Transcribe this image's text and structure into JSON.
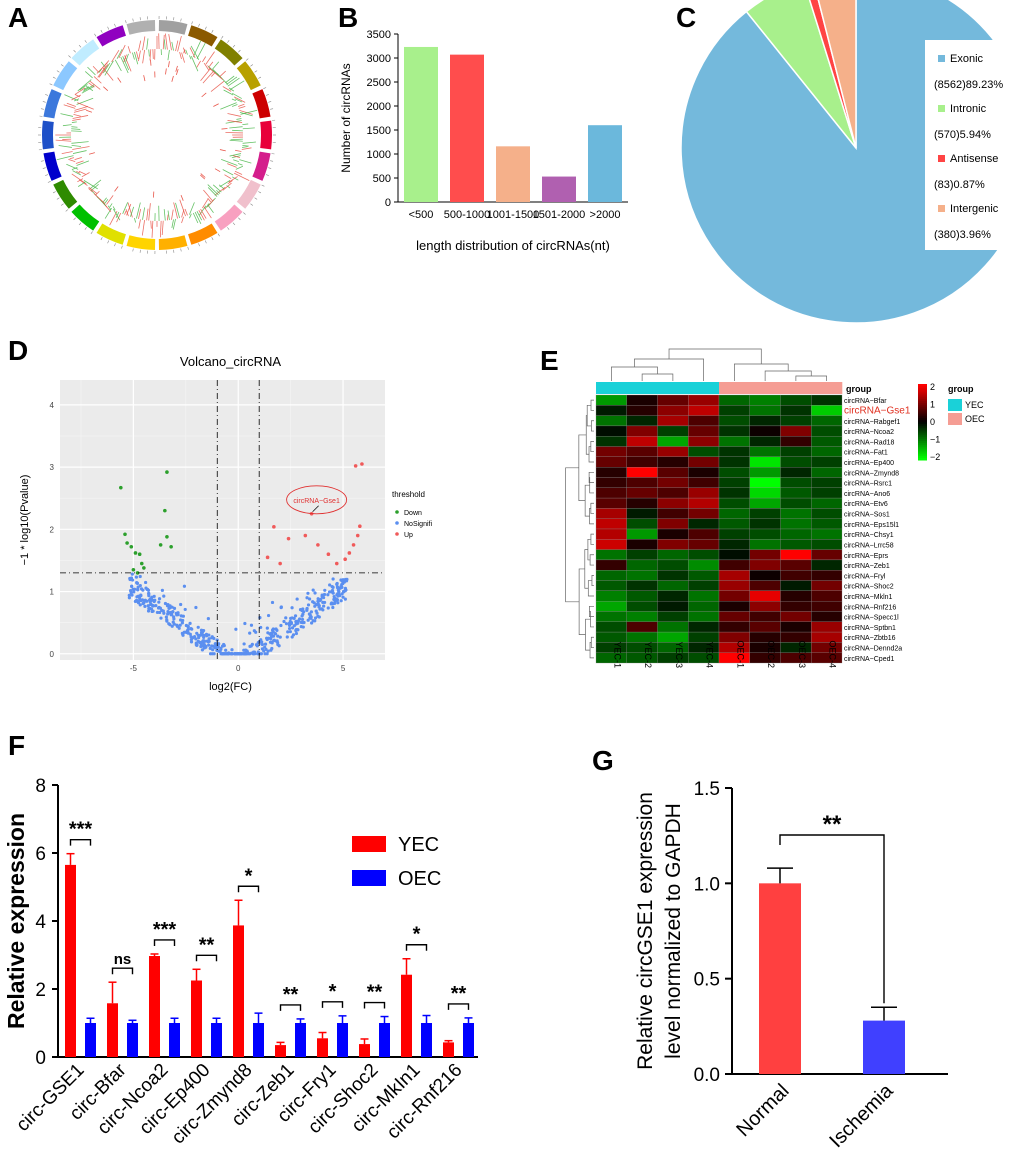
{
  "panels": {
    "a": "A",
    "b": "B",
    "c": "C",
    "d": "D",
    "e": "E",
    "f": "F",
    "g": "G"
  },
  "chart_data": [
    {
      "panel": "A",
      "type": "other",
      "description_free": true,
      "segment_colors": [
        "#a0a0a0",
        "#8b5a00",
        "#808000",
        "#b8a000",
        "#cc0000",
        "#e8003a",
        "#d41e8c",
        "#f0c0cc",
        "#f8a0c0",
        "#ff8c00",
        "#ffb000",
        "#ffd400",
        "#e0e000",
        "#00c000",
        "#2e8b00",
        "#0000cc",
        "#1e50c8",
        "#3c78dc",
        "#8cc8ff",
        "#c0ecff",
        "#9000c0",
        "#b0b0b0"
      ]
    },
    {
      "panel": "B",
      "type": "bar",
      "categories": [
        "<500",
        "500-1000",
        "1001-1500",
        "1501-2000",
        ">2000"
      ],
      "values": [
        3230,
        3070,
        1160,
        530,
        1600
      ],
      "colors": [
        "#a8f08c",
        "#ff4d4d",
        "#f5b08a",
        "#b060b0",
        "#6bb8dc"
      ],
      "ylabel": "Number of circRNAs",
      "xlabel": "length distribution of circRNAs(nt)",
      "ylim": [
        0,
        3500
      ],
      "yticks": [
        "0",
        "500",
        "1000",
        "1500",
        "2000",
        "2500",
        "3000",
        "3500"
      ]
    },
    {
      "panel": "C",
      "type": "pie",
      "slices": [
        {
          "name": "Exonic",
          "value": 89.23,
          "label": "(8562)89.23%",
          "color": "#74b9dc"
        },
        {
          "name": "Intronic",
          "value": 5.94,
          "label": "(570)5.94%",
          "color": "#a8f08c"
        },
        {
          "name": "Antisense",
          "value": 0.87,
          "label": "(83)0.87%",
          "color": "#ff4444"
        },
        {
          "name": "Intergenic",
          "value": 3.96,
          "label": "(380)3.96%",
          "color": "#f5b08a"
        }
      ]
    },
    {
      "panel": "D",
      "type": "scatter",
      "title": "Volcano_circRNA",
      "xlabel": "log2(FC)",
      "ylabel": "−1 * log10(Pvalue)",
      "xlim": [
        -8.5,
        7
      ],
      "ylim": [
        -0.1,
        4.4
      ],
      "xticks": [
        "-5",
        "0",
        "5"
      ],
      "yticks": [
        "0",
        "1",
        "2",
        "3",
        "4"
      ],
      "vlines": [
        -1,
        1
      ],
      "hline": 1.3,
      "annotation": "circRNA−Gse1",
      "legend_title": "threshold",
      "legend": [
        {
          "name": "Down",
          "color": "#2ca02c"
        },
        {
          "name": "NoSignifi",
          "color": "#5b8ff0"
        },
        {
          "name": "Up",
          "color": "#f05a5a"
        }
      ],
      "down_points": [
        [
          -5.6,
          2.67
        ],
        [
          -3.4,
          2.92
        ],
        [
          -3.5,
          2.3
        ],
        [
          -5.4,
          1.92
        ],
        [
          -5.3,
          1.78
        ],
        [
          -5.1,
          1.72
        ],
        [
          -4.9,
          1.62
        ],
        [
          -4.7,
          1.6
        ],
        [
          -4.6,
          1.45
        ],
        [
          -3.7,
          1.75
        ],
        [
          -3.4,
          1.88
        ],
        [
          -3.2,
          1.72
        ],
        [
          -5.0,
          1.35
        ],
        [
          -4.5,
          1.38
        ],
        [
          -4.8,
          1.3
        ]
      ],
      "up_points": [
        [
          5.6,
          3.02
        ],
        [
          5.9,
          3.05
        ],
        [
          3.5,
          2.25
        ],
        [
          5.8,
          2.05
        ],
        [
          5.7,
          1.9
        ],
        [
          5.5,
          1.75
        ],
        [
          5.3,
          1.62
        ],
        [
          1.7,
          2.04
        ],
        [
          2.4,
          1.85
        ],
        [
          3.2,
          1.9
        ],
        [
          3.8,
          1.75
        ],
        [
          4.3,
          1.6
        ],
        [
          1.4,
          1.55
        ],
        [
          2.0,
          1.45
        ],
        [
          4.7,
          1.45
        ],
        [
          5.1,
          1.52
        ]
      ],
      "highlight": [
        3.5,
        2.25
      ]
    },
    {
      "panel": "E",
      "type": "heatmap",
      "columns": [
        "YEC-1",
        "YEC-2",
        "YEC-3",
        "YEC-4",
        "OEC-1",
        "OEC-2",
        "OEC-3",
        "OEC-4"
      ],
      "group_bar_label": "group",
      "groups": [
        {
          "name": "YEC",
          "color": "#1ad1d8"
        },
        {
          "name": "OEC",
          "color": "#f59d94"
        }
      ],
      "scale_ticks": [
        "2",
        "1",
        "0",
        "−1",
        "−2"
      ],
      "legend_title": "group",
      "highlight_row": "circRNA−Gse1",
      "rows": [
        {
          "name": "circRNA−Bfar",
          "values": [
            -1.2,
            0.2,
            0.8,
            1.2,
            -0.8,
            -1.0,
            -0.6,
            -0.4
          ]
        },
        {
          "name": "circRNA−Gse1",
          "values": [
            -0.2,
            0.3,
            1.1,
            1.5,
            -0.5,
            -0.9,
            -0.4,
            -1.6
          ]
        },
        {
          "name": "circRNA−Rabgef1",
          "values": [
            -0.9,
            -0.3,
            1.3,
            0.6,
            -0.6,
            -0.3,
            -0.5,
            -0.8
          ]
        },
        {
          "name": "circRNA−Ncoa2",
          "values": [
            -0.1,
            1.0,
            -0.5,
            0.8,
            -0.4,
            0.1,
            1.0,
            -0.6
          ]
        },
        {
          "name": "circRNA−Rad18",
          "values": [
            -0.4,
            1.5,
            -1.3,
            1.1,
            -0.9,
            -0.3,
            0.4,
            -0.7
          ]
        },
        {
          "name": "circRNA−Fat1",
          "values": [
            0.9,
            0.7,
            1.2,
            -0.6,
            -0.4,
            -0.9,
            -0.5,
            -0.8
          ]
        },
        {
          "name": "circRNA−Ep400",
          "values": [
            0.8,
            0.5,
            0.3,
            0.9,
            -0.4,
            -1.8,
            -0.6,
            -0.5
          ]
        },
        {
          "name": "circRNA−Zmynd8",
          "values": [
            0.3,
            2.0,
            0.7,
            0.2,
            -0.6,
            -1.2,
            -0.3,
            -0.8
          ]
        },
        {
          "name": "circRNA−Rsrc1",
          "values": [
            0.4,
            0.6,
            0.9,
            0.5,
            -0.5,
            -2.0,
            -0.6,
            -0.5
          ]
        },
        {
          "name": "circRNA−Ano6",
          "values": [
            0.6,
            0.8,
            0.6,
            1.2,
            -0.4,
            -1.7,
            -0.7,
            -0.5
          ]
        },
        {
          "name": "circRNA−Etv6",
          "values": [
            0.7,
            0.3,
            1.1,
            1.4,
            -0.6,
            -1.3,
            -0.6,
            -0.8
          ]
        },
        {
          "name": "circRNA−Sos1",
          "values": [
            1.3,
            -0.2,
            0.5,
            0.9,
            -0.8,
            -0.5,
            -0.9,
            -0.6
          ]
        },
        {
          "name": "circRNA−Eps15l1",
          "values": [
            1.5,
            -0.6,
            1.0,
            -0.3,
            -0.7,
            -0.4,
            -0.9,
            -0.7
          ]
        },
        {
          "name": "circRNA−Chsy1",
          "values": [
            1.4,
            -1.2,
            0.2,
            0.6,
            -0.5,
            -0.6,
            -0.8,
            -0.9
          ]
        },
        {
          "name": "circRNA−Lrrc58",
          "values": [
            1.6,
            0.2,
            1.0,
            0.8,
            -0.3,
            -0.9,
            -0.7,
            -0.6
          ]
        },
        {
          "name": "circRNA−Eprs",
          "values": [
            -0.9,
            -0.5,
            -0.8,
            -0.6,
            -0.1,
            0.9,
            2.0,
            0.8
          ]
        },
        {
          "name": "circRNA−Zeb1",
          "values": [
            0.4,
            -0.8,
            -0.6,
            -1.1,
            0.5,
            1.0,
            0.7,
            -0.3
          ]
        },
        {
          "name": "circRNA−Fryl",
          "values": [
            -0.8,
            -0.9,
            -0.4,
            -0.7,
            1.3,
            0.1,
            0.5,
            0.4
          ]
        },
        {
          "name": "circRNA−Shoc2",
          "values": [
            -0.7,
            -0.4,
            -0.8,
            -0.5,
            1.2,
            0.6,
            -0.2,
            0.9
          ]
        },
        {
          "name": "circRNA−Mkln1",
          "values": [
            -1.0,
            -0.7,
            -0.3,
            -0.9,
            0.9,
            1.8,
            0.3,
            0.6
          ]
        },
        {
          "name": "circRNA−Rnf216",
          "values": [
            -1.3,
            -0.6,
            -0.2,
            -0.8,
            0.2,
            1.1,
            0.4,
            0.5
          ]
        },
        {
          "name": "circRNA−Specc1l",
          "values": [
            -0.9,
            -1.0,
            -0.5,
            -0.9,
            0.8,
            0.5,
            0.9,
            0.3
          ]
        },
        {
          "name": "circRNA−Sptbn1",
          "values": [
            -0.6,
            0.6,
            -0.9,
            -0.3,
            0.4,
            0.7,
            0.2,
            1.2
          ]
        },
        {
          "name": "circRNA−Zbtb16",
          "values": [
            -0.7,
            -0.9,
            -1.3,
            -0.5,
            1.0,
            0.3,
            0.4,
            1.3
          ]
        },
        {
          "name": "circRNA−Dennd2a",
          "values": [
            -0.5,
            -0.6,
            -0.8,
            -0.3,
            1.4,
            0.2,
            -0.3,
            0.9
          ]
        },
        {
          "name": "circRNA−Cped1",
          "values": [
            -0.8,
            -0.7,
            -0.5,
            -0.6,
            2.0,
            0.4,
            0.6,
            0.7
          ]
        }
      ]
    },
    {
      "panel": "F",
      "type": "bar",
      "ylabel": "Relative expression",
      "ylim": [
        0,
        8
      ],
      "yticks": [
        "0",
        "2",
        "4",
        "6",
        "8"
      ],
      "categories": [
        "circ-GSE1",
        "circ-Bfar",
        "circ-Ncoa2",
        "circ-Ep400",
        "circ-Zmynd8",
        "circ-Zeb1",
        "circ-Fry1",
        "circ-Shoc2",
        "circ-MkIn1",
        "circ-Rnf216"
      ],
      "series": [
        {
          "name": "YEC",
          "color": "#ff0000",
          "values": [
            5.65,
            1.58,
            2.97,
            2.25,
            3.87,
            0.35,
            0.55,
            0.38,
            2.42,
            0.43
          ],
          "errors": [
            0.33,
            0.62,
            0.06,
            0.33,
            0.74,
            0.08,
            0.17,
            0.15,
            0.47,
            0.05
          ]
        },
        {
          "name": "OEC",
          "color": "#0000ff",
          "values": [
            1.0,
            1.0,
            1.0,
            1.0,
            1.0,
            1.0,
            1.0,
            1.0,
            1.0,
            1.0
          ],
          "errors": [
            0.14,
            0.08,
            0.14,
            0.14,
            0.29,
            0.12,
            0.21,
            0.19,
            0.22,
            0.15
          ]
        }
      ],
      "significance": [
        "***",
        "ns",
        "***",
        "**",
        "*",
        "**",
        "*",
        "**",
        "*",
        "**"
      ]
    },
    {
      "panel": "G",
      "type": "bar",
      "ylabel_lines": [
        "Relative circGSE1 expression",
        "level normalized to GAPDH"
      ],
      "ylim": [
        0,
        1.5
      ],
      "yticks": [
        "0.0",
        "0.5",
        "1.0",
        "1.5"
      ],
      "categories": [
        "Normal",
        "Ischemia"
      ],
      "values": [
        1.0,
        0.28
      ],
      "errors": [
        0.08,
        0.07
      ],
      "colors": [
        "#ff4040",
        "#4040ff"
      ],
      "significance": "**"
    }
  ]
}
